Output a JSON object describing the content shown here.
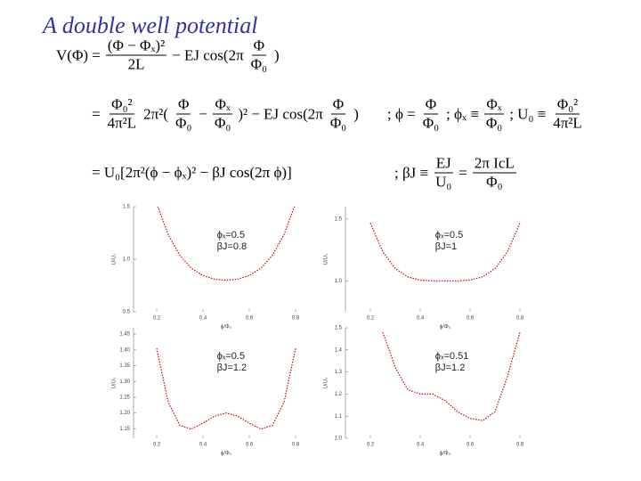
{
  "title": "A double well potential",
  "equations": [
    [
      "V(Φ) =",
      {
        "num": "(Φ − Φₓ)²",
        "den": "2L"
      },
      "− EJ cos(2π",
      {
        "num": "Φ",
        "den": "Φ₀"
      },
      ")"
    ],
    [
      "=",
      {
        "num": "Φ₀²",
        "den": "4π²L"
      },
      "2π²(",
      {
        "num": "Φ",
        "den": "Φ₀"
      },
      "−",
      {
        "num": "Φₓ",
        "den": "Φ₀"
      },
      ")² − EJ cos(2π",
      {
        "num": "Φ",
        "den": "Φ₀"
      },
      ")"
    ],
    [
      "; ϕ =",
      {
        "num": "Φ",
        "den": "Φ₀"
      },
      "; ϕₓ ≡",
      {
        "num": "Φₓ",
        "den": "Φ₀"
      },
      "; U₀ ≡",
      {
        "num": "Φ₀²",
        "den": "4π²L"
      }
    ],
    [
      "= U₀[2π²(ϕ − ϕₓ)² − βJ cos(2π ϕ)]"
    ],
    [
      "; βJ ≡",
      {
        "num": "EJ",
        "den": "U₀"
      },
      "=",
      {
        "num": "2π IcL",
        "den": "Φ₀"
      }
    ]
  ],
  "chart_data": [
    {
      "type": "line",
      "x": [
        0.2,
        0.25,
        0.3,
        0.35,
        0.4,
        0.45,
        0.5,
        0.55,
        0.6,
        0.65,
        0.7,
        0.75,
        0.8
      ],
      "values": [
        1.529,
        1.234,
        1.037,
        0.914,
        0.845,
        0.81,
        0.8,
        0.81,
        0.845,
        0.914,
        1.037,
        1.234,
        1.529
      ],
      "color": "#cc0000",
      "xlim": [
        0.1,
        0.9
      ],
      "xticks": [
        0.2,
        0.4,
        0.6,
        0.8
      ],
      "ylim": [
        0.5,
        1.5
      ],
      "yticks": [
        0.5,
        {
          "value": 1,
          "label": "1.0"
        },
        1.5
      ],
      "xlabel": "ϕ/Φ₀",
      "ylabel": "U/U₀",
      "annotations": [
        "ϕₓ=0.5",
        "βJ=0.8"
      ]
    },
    {
      "type": "line",
      "x": [
        0.2,
        0.25,
        0.3,
        0.35,
        0.4,
        0.45,
        0.5,
        0.55,
        0.6,
        0.65,
        0.7,
        0.75,
        0.8
      ],
      "values": [
        1.467,
        1.234,
        1.099,
        1.032,
        1.006,
        1.0,
        1.0,
        1.0,
        1.006,
        1.032,
        1.099,
        1.234,
        1.467
      ],
      "color": "#cc0000",
      "xlim": [
        0.1,
        0.9
      ],
      "xticks": [
        0.2,
        0.4,
        0.6,
        0.8
      ],
      "ylim": [
        0.75,
        1.6
      ],
      "yticks": [
        {
          "value": 1,
          "label": "1.0"
        },
        1.5
      ],
      "xlabel": "ϕ/Φ₀",
      "ylabel": "U/U₀",
      "annotations": [
        "ϕₓ=0.5",
        "βJ=1"
      ]
    },
    {
      "type": "line",
      "x": [
        0.2,
        0.25,
        0.3,
        0.35,
        0.4,
        0.45,
        0.5,
        0.55,
        0.6,
        0.65,
        0.7,
        0.75,
        0.8
      ],
      "values": [
        1.405,
        1.234,
        1.161,
        1.149,
        1.168,
        1.19,
        1.2,
        1.19,
        1.168,
        1.149,
        1.161,
        1.234,
        1.405
      ],
      "color": "#cc0000",
      "xlim": [
        0.1,
        0.9
      ],
      "xticks": [
        0.2,
        0.4,
        0.6,
        0.8
      ],
      "ylim": [
        1.12,
        1.47
      ],
      "yticks": [
        1.15,
        {
          "value": 1.2,
          "label": "1.20"
        },
        1.25,
        {
          "value": 1.3,
          "label": "1.30"
        },
        1.35,
        {
          "value": 1.4,
          "label": "1.40"
        },
        1.45
      ],
      "xlabel": "ϕ/Φ₀",
      "ylabel": "U/U₀",
      "annotations": [
        "ϕₓ=0.5",
        "βJ=1.2"
      ]
    },
    {
      "type": "line",
      "x": [
        0.25,
        0.3,
        0.35,
        0.4,
        0.45,
        0.5,
        0.55,
        0.6,
        0.65,
        0.7,
        0.75,
        0.8
      ],
      "values": [
        1.48,
        1.32,
        1.22,
        1.2,
        1.2,
        1.17,
        1.12,
        1.09,
        1.08,
        1.12,
        1.28,
        1.48
      ],
      "color": "#cc0000",
      "xlim": [
        0.1,
        0.9
      ],
      "xticks": [
        0.2,
        0.4,
        0.6,
        0.8
      ],
      "ylim": [
        1.0,
        1.5
      ],
      "yticks": [
        {
          "value": 1,
          "label": "1.0"
        },
        1.1,
        1.2,
        1.3,
        1.4,
        1.5
      ],
      "xlabel": "ϕ/Φ₀",
      "ylabel": "U/U₀",
      "annotations": [
        "ϕₓ=0.51",
        "βJ=1.2"
      ]
    }
  ]
}
